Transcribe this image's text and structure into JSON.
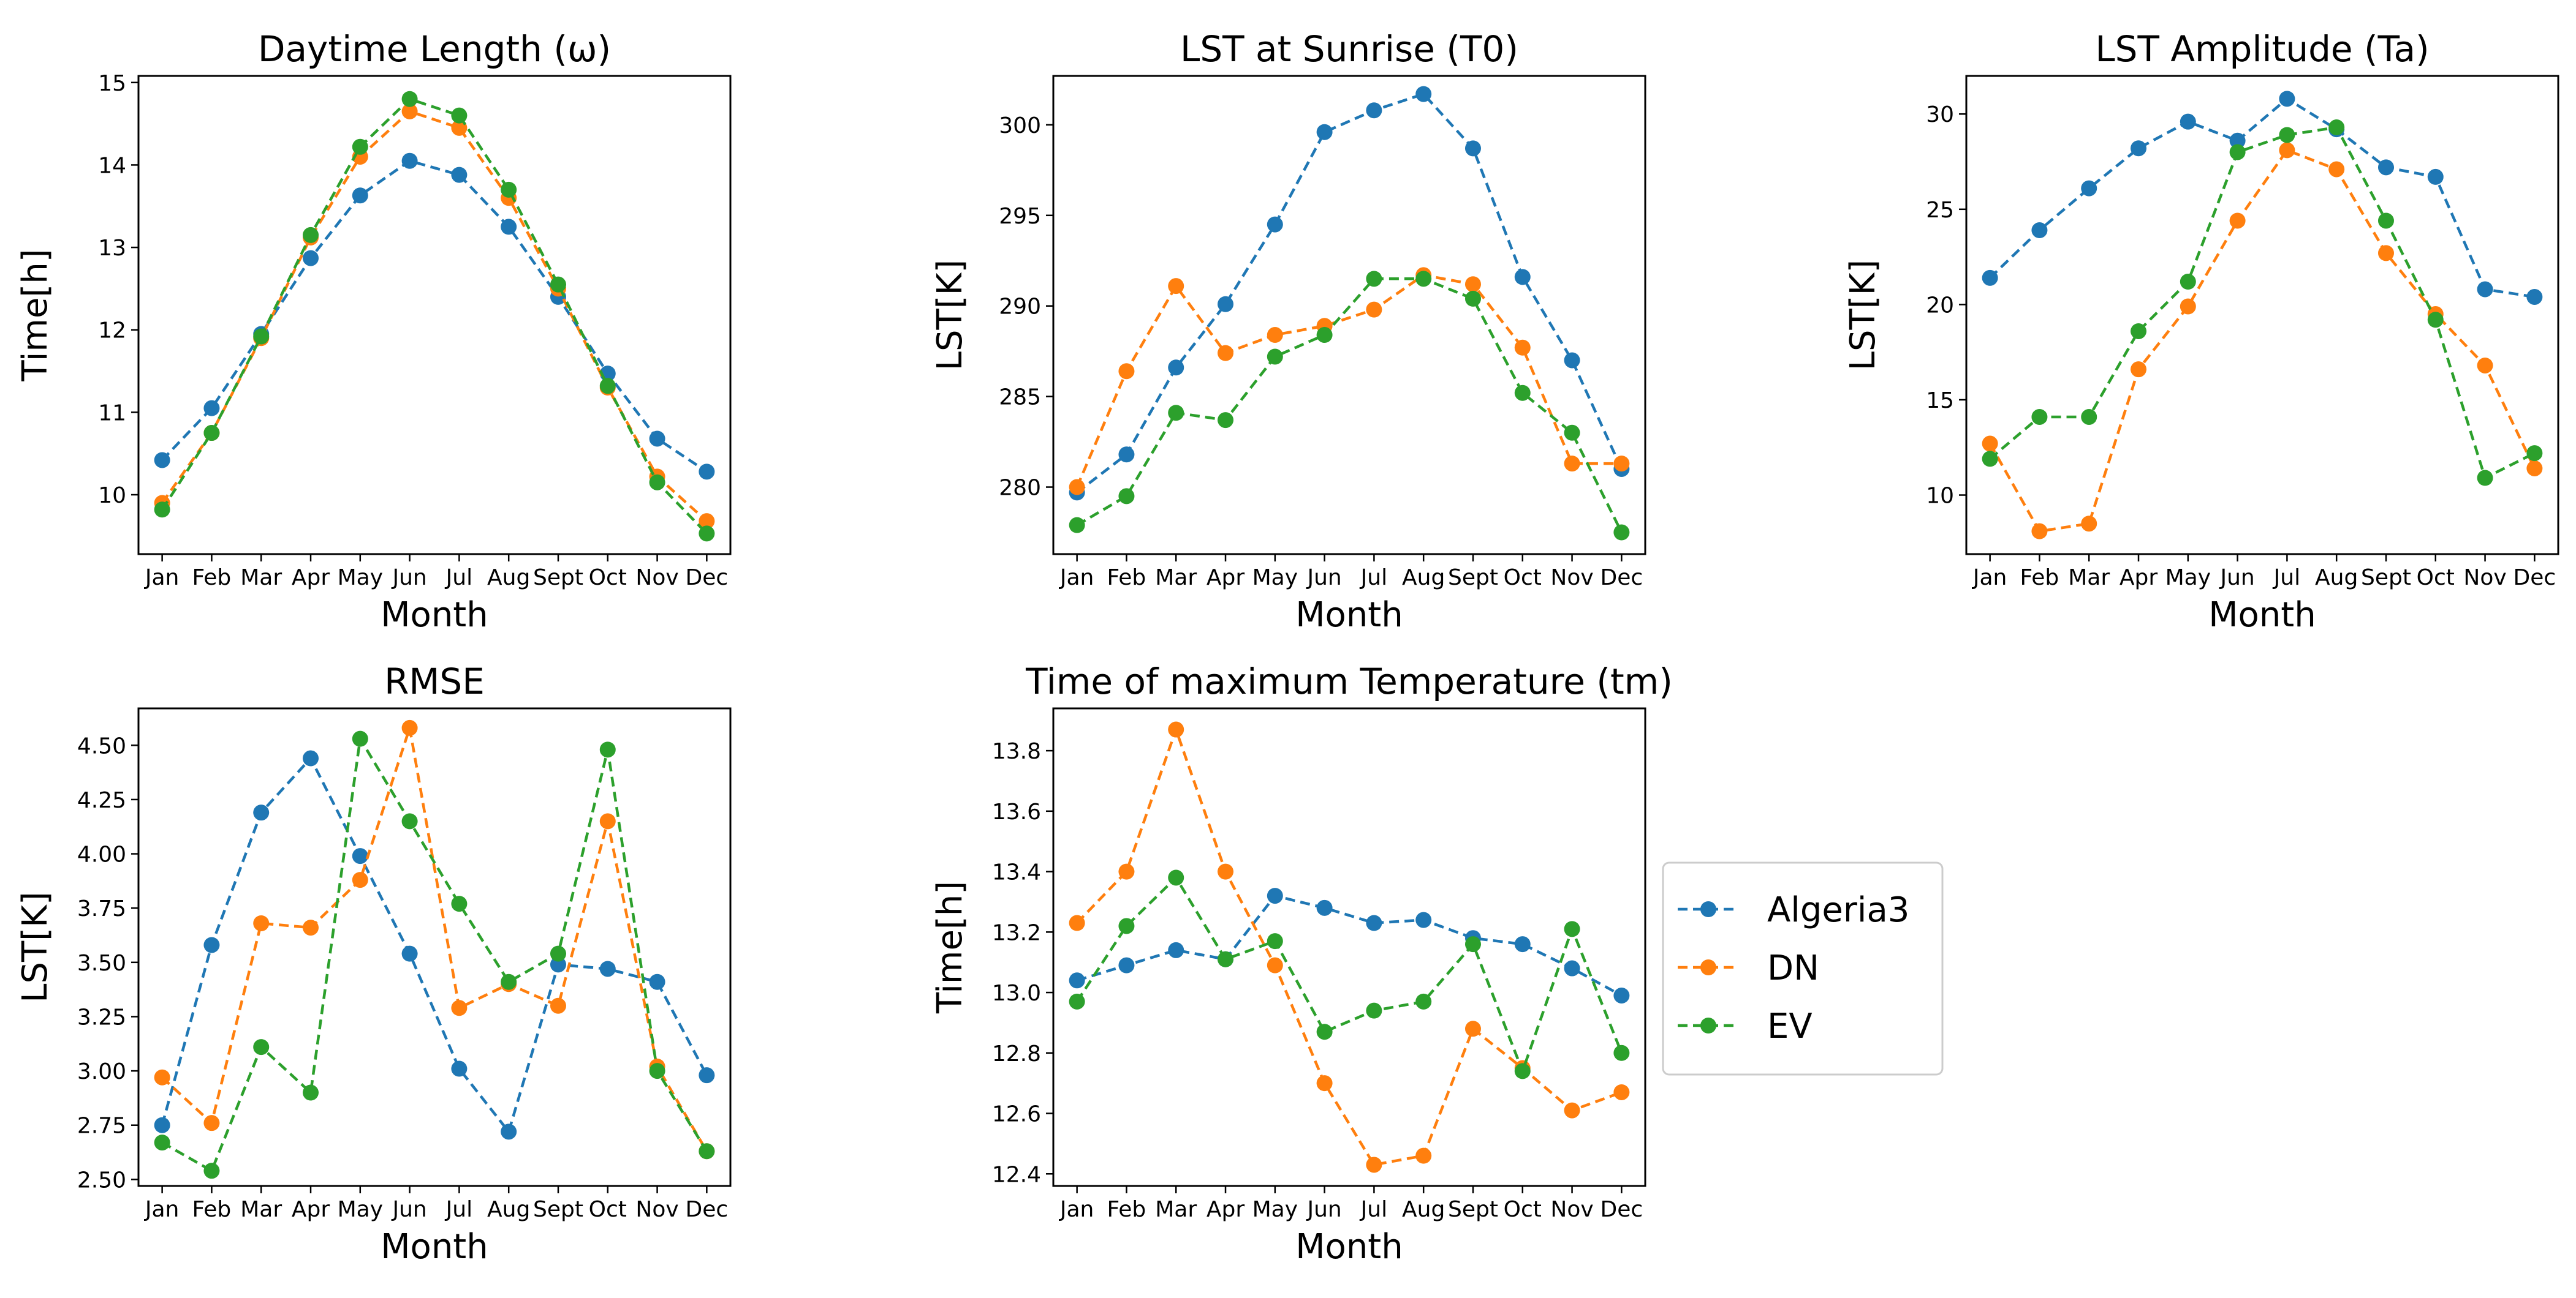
{
  "colors": {
    "Algeria3": "#1f77b4",
    "DN": "#ff7f0e",
    "EV": "#2ca02c"
  },
  "legend": [
    "Algeria3",
    "DN",
    "EV"
  ],
  "chart_data": [
    {
      "type": "line",
      "title": "Daytime Length (ω)",
      "xlabel": "Month",
      "ylabel": "Time[h]",
      "categories": [
        "Jan",
        "Feb",
        "Mar",
        "Apr",
        "May",
        "Jun",
        "Jul",
        "Aug",
        "Sept",
        "Oct",
        "Nov",
        "Dec"
      ],
      "yticks": [
        10,
        11,
        12,
        13,
        14,
        15
      ],
      "yticklabels": [
        "10",
        "11",
        "12",
        "13",
        "14",
        "15"
      ],
      "ylim": [
        9.28,
        15.08
      ],
      "series": [
        {
          "name": "Algeria3",
          "values": [
            10.42,
            11.05,
            11.95,
            12.87,
            13.63,
            14.05,
            13.88,
            13.25,
            12.4,
            11.47,
            10.68,
            10.28
          ]
        },
        {
          "name": "DN",
          "values": [
            9.9,
            10.75,
            11.9,
            13.12,
            14.1,
            14.65,
            14.45,
            13.6,
            12.5,
            11.3,
            10.22,
            9.68
          ]
        },
        {
          "name": "EV",
          "values": [
            9.82,
            10.75,
            11.92,
            13.15,
            14.22,
            14.8,
            14.6,
            13.7,
            12.55,
            11.32,
            10.15,
            9.53
          ]
        }
      ]
    },
    {
      "type": "line",
      "title": "LST at Sunrise (T0)",
      "xlabel": "Month",
      "ylabel": "LST[K]",
      "categories": [
        "Jan",
        "Feb",
        "Mar",
        "Apr",
        "May",
        "Jun",
        "Jul",
        "Aug",
        "Sept",
        "Oct",
        "Nov",
        "Dec"
      ],
      "yticks": [
        280,
        285,
        290,
        295,
        300
      ],
      "yticklabels": [
        "280",
        "285",
        "290",
        "295",
        "300"
      ],
      "ylim": [
        276.3,
        302.7
      ],
      "series": [
        {
          "name": "Algeria3",
          "values": [
            279.7,
            281.8,
            286.6,
            290.1,
            294.5,
            299.6,
            300.8,
            301.7,
            298.7,
            291.6,
            287.0,
            281.0
          ]
        },
        {
          "name": "DN",
          "values": [
            280.0,
            286.4,
            291.1,
            287.4,
            288.4,
            288.9,
            289.8,
            291.7,
            291.2,
            287.7,
            281.3,
            281.3
          ]
        },
        {
          "name": "EV",
          "values": [
            277.9,
            279.5,
            284.1,
            283.7,
            287.2,
            288.4,
            291.5,
            291.5,
            290.4,
            285.2,
            283.0,
            277.5
          ]
        }
      ]
    },
    {
      "type": "line",
      "title": "LST Amplitude (Ta)",
      "xlabel": "Month",
      "ylabel": "LST[K]",
      "categories": [
        "Jan",
        "Feb",
        "Mar",
        "Apr",
        "May",
        "Jun",
        "Jul",
        "Aug",
        "Sept",
        "Oct",
        "Nov",
        "Dec"
      ],
      "yticks": [
        10,
        15,
        20,
        25,
        30
      ],
      "yticklabels": [
        "10",
        "15",
        "20",
        "25",
        "30"
      ],
      "ylim": [
        6.9,
        32.0
      ],
      "series": [
        {
          "name": "Algeria3",
          "values": [
            21.4,
            23.9,
            26.1,
            28.2,
            29.6,
            28.6,
            30.8,
            29.2,
            27.2,
            26.7,
            20.8,
            20.4
          ]
        },
        {
          "name": "DN",
          "values": [
            12.7,
            8.1,
            8.5,
            16.6,
            19.9,
            24.4,
            28.1,
            27.1,
            22.7,
            19.5,
            16.8,
            11.4
          ]
        },
        {
          "name": "EV",
          "values": [
            11.9,
            14.1,
            14.1,
            18.6,
            21.2,
            28.0,
            28.9,
            29.3,
            24.4,
            19.2,
            10.9,
            12.2
          ]
        }
      ]
    },
    {
      "type": "line",
      "title": "RMSE",
      "xlabel": "Month",
      "ylabel": "LST[K]",
      "categories": [
        "Jan",
        "Feb",
        "Mar",
        "Apr",
        "May",
        "Jun",
        "Jul",
        "Aug",
        "Sept",
        "Oct",
        "Nov",
        "Dec"
      ],
      "yticks": [
        2.5,
        2.75,
        3.0,
        3.25,
        3.5,
        3.75,
        4.0,
        4.25,
        4.5
      ],
      "yticklabels": [
        "2.50",
        "2.75",
        "3.00",
        "3.25",
        "3.50",
        "3.75",
        "4.00",
        "4.25",
        "4.50"
      ],
      "ylim": [
        2.47,
        4.67
      ],
      "series": [
        {
          "name": "Algeria3",
          "values": [
            2.75,
            3.58,
            4.19,
            4.44,
            3.99,
            3.54,
            3.01,
            2.72,
            3.49,
            3.47,
            3.41,
            2.98
          ]
        },
        {
          "name": "DN",
          "values": [
            2.97,
            2.76,
            3.68,
            3.66,
            3.88,
            4.58,
            3.29,
            3.4,
            3.3,
            4.15,
            3.02,
            2.63
          ]
        },
        {
          "name": "EV",
          "values": [
            2.67,
            2.54,
            3.11,
            2.9,
            4.53,
            4.15,
            3.77,
            3.41,
            3.54,
            4.48,
            3.0,
            2.63
          ]
        }
      ]
    },
    {
      "type": "line",
      "title": "Time of maximum Temperature (tm)",
      "xlabel": "Month",
      "ylabel": "Time[h]",
      "categories": [
        "Jan",
        "Feb",
        "Mar",
        "Apr",
        "May",
        "Jun",
        "Jul",
        "Aug",
        "Sept",
        "Oct",
        "Nov",
        "Dec"
      ],
      "yticks": [
        12.4,
        12.6,
        12.8,
        13.0,
        13.2,
        13.4,
        13.6,
        13.8
      ],
      "yticklabels": [
        "12.4",
        "12.6",
        "12.8",
        "13.0",
        "13.2",
        "13.4",
        "13.6",
        "13.8"
      ],
      "ylim": [
        12.36,
        13.94
      ],
      "series": [
        {
          "name": "Algeria3",
          "values": [
            13.04,
            13.09,
            13.14,
            13.11,
            13.32,
            13.28,
            13.23,
            13.24,
            13.18,
            13.16,
            13.08,
            12.99
          ]
        },
        {
          "name": "DN",
          "values": [
            13.23,
            13.4,
            13.87,
            13.4,
            13.09,
            12.7,
            12.43,
            12.46,
            12.88,
            12.75,
            12.61,
            12.67
          ]
        },
        {
          "name": "EV",
          "values": [
            12.97,
            13.22,
            13.38,
            13.11,
            13.17,
            12.87,
            12.94,
            12.97,
            13.16,
            12.74,
            13.21,
            12.8
          ]
        }
      ]
    }
  ]
}
